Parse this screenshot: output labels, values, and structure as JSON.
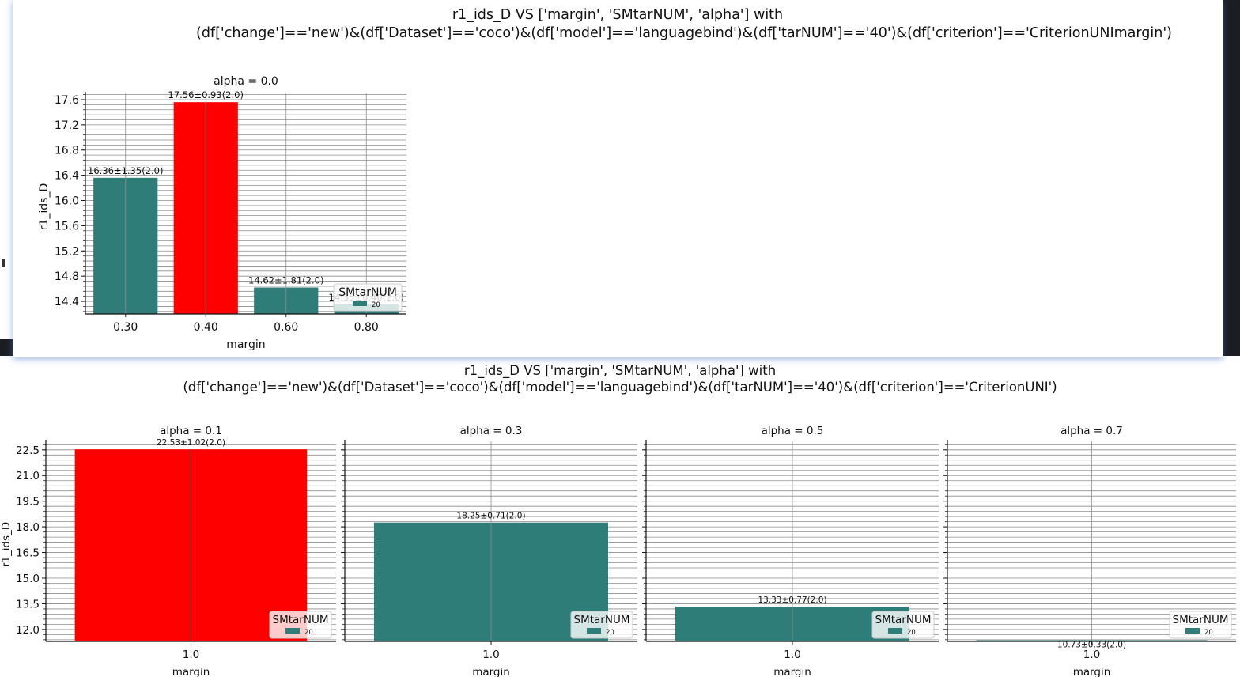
{
  "window": {
    "suptitle_line1": "r1_ids_D VS ['margin', 'SMtarNUM', 'alpha'] with",
    "suptitle_line2": "(df['change']=='new')&(df['Dataset']=='coco')&(df['model']=='languagebind')&(df['tarNUM']=='40')&(df['criterion']=='CriterionUNImargin')"
  },
  "figure2": {
    "suptitle_line1": "r1_ids_D VS ['margin', 'SMtarNUM', 'alpha'] with",
    "suptitle_line2": "(df['change']=='new')&(df['Dataset']=='coco')&(df['model']=='languagebind')&(df['tarNUM']=='40')&(df['criterion']=='CriterionUNI')"
  },
  "colors": {
    "teal": "#2e7d78",
    "highlight": "#ff0000",
    "grid": "#999999"
  },
  "chart_data": [
    {
      "type": "bar",
      "title": "alpha = 0.0",
      "xlabel": "margin",
      "ylabel": "r1_ids_D",
      "categories": [
        "0.30",
        "0.40",
        "0.60",
        "0.80"
      ],
      "values": [
        16.36,
        17.56,
        14.62,
        14.35
      ],
      "bar_labels": [
        "16.36±1.35(2.0)",
        "17.56±0.93(2.0)",
        "14.62±1.81(2.0)",
        "14.35±0.40(2.0)"
      ],
      "highlight_index": 1,
      "ylim": [
        14.2,
        17.7
      ],
      "yticks": [
        14.4,
        14.8,
        15.2,
        15.6,
        16.0,
        16.4,
        16.8,
        17.2,
        17.6
      ],
      "ytick_labels": [
        "14.4",
        "14.8",
        "15.2",
        "15.6",
        "16.0",
        "16.4",
        "16.8",
        "17.2",
        "17.6"
      ],
      "legend": {
        "title": "SMtarNUM",
        "entries": [
          "20"
        ],
        "placement": "lower-right"
      }
    },
    {
      "type": "bar",
      "title": "alpha = 0.1",
      "xlabel": "margin",
      "ylabel": "r1_ids_D",
      "categories": [
        "1.0"
      ],
      "values": [
        22.53
      ],
      "bar_labels": [
        "22.53±1.02(2.0)"
      ],
      "highlight_index": 0,
      "ylim": [
        11.3,
        23.0
      ],
      "yticks": [
        12.0,
        13.5,
        15.0,
        16.5,
        18.0,
        19.5,
        21.0,
        22.5
      ],
      "ytick_labels": [
        "12.0",
        "13.5",
        "15.0",
        "16.5",
        "18.0",
        "19.5",
        "21.0",
        "22.5"
      ],
      "legend": {
        "title": "SMtarNUM",
        "entries": [
          "20"
        ],
        "placement": "lower-right"
      }
    },
    {
      "type": "bar",
      "title": "alpha = 0.3",
      "xlabel": "margin",
      "ylabel": "",
      "categories": [
        "1.0"
      ],
      "values": [
        18.25
      ],
      "bar_labels": [
        "18.25±0.71(2.0)"
      ],
      "highlight_index": -1,
      "ylim": [
        11.3,
        23.0
      ],
      "yticks": [
        12.0,
        13.5,
        15.0,
        16.5,
        18.0,
        19.5,
        21.0,
        22.5
      ],
      "ytick_labels": [],
      "legend": {
        "title": "SMtarNUM",
        "entries": [
          "20"
        ],
        "placement": "lower-right"
      }
    },
    {
      "type": "bar",
      "title": "alpha = 0.5",
      "xlabel": "margin",
      "ylabel": "",
      "categories": [
        "1.0"
      ],
      "values": [
        13.33
      ],
      "bar_labels": [
        "13.33±0.77(2.0)"
      ],
      "highlight_index": -1,
      "ylim": [
        11.3,
        23.0
      ],
      "yticks": [
        12.0,
        13.5,
        15.0,
        16.5,
        18.0,
        19.5,
        21.0,
        22.5
      ],
      "ytick_labels": [],
      "legend": {
        "title": "SMtarNUM",
        "entries": [
          "20"
        ],
        "placement": "lower-right"
      }
    },
    {
      "type": "bar",
      "title": "alpha = 0.7",
      "xlabel": "margin",
      "ylabel": "",
      "categories": [
        "1.0"
      ],
      "values": [
        10.73
      ],
      "bar_labels": [
        "10.73±0.33(2.0)"
      ],
      "highlight_index": -1,
      "ylim": [
        11.3,
        23.0
      ],
      "yticks": [
        12.0,
        13.5,
        15.0,
        16.5,
        18.0,
        19.5,
        21.0,
        22.5
      ],
      "ytick_labels": [],
      "legend": {
        "title": "SMtarNUM",
        "entries": [
          "20"
        ],
        "placement": "lower-right"
      }
    }
  ]
}
